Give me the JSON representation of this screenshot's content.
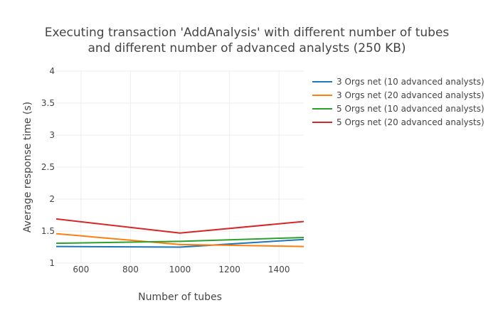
{
  "chart_data": {
    "type": "line",
    "title_lines": [
      "Executing transaction 'AddAnalysis' with different number of tubes",
      "and different number of advanced analysts (250 KB)"
    ],
    "xlabel": "Number of tubes",
    "ylabel": "Average response time (s)",
    "xlim": [
      500,
      1500
    ],
    "ylim": [
      1,
      4
    ],
    "x_ticks": [
      600,
      800,
      1000,
      1200,
      1400
    ],
    "y_ticks": [
      1,
      1.5,
      2,
      2.5,
      3,
      3.5,
      4
    ],
    "y_tick_labels": [
      "1",
      "1.5",
      "2",
      "2.5",
      "3",
      "3.5",
      "4"
    ],
    "x": [
      500,
      1000,
      1500
    ],
    "grid": true,
    "legend_position": "right",
    "series": [
      {
        "name": "3 Orgs net (10 advanced analysts)",
        "color": "#1f77b4",
        "values": [
          1.26,
          1.25,
          1.37
        ]
      },
      {
        "name": "3 Orgs net (20 advanced analysts)",
        "color": "#ff7f0e",
        "values": [
          1.46,
          1.29,
          1.26
        ]
      },
      {
        "name": "5 Orgs net (10 advanced analysts)",
        "color": "#2ca02c",
        "values": [
          1.31,
          1.34,
          1.4
        ]
      },
      {
        "name": "5 Orgs net (20 advanced analysts)",
        "color": "#d62728",
        "values": [
          1.69,
          1.47,
          1.65
        ]
      }
    ]
  }
}
